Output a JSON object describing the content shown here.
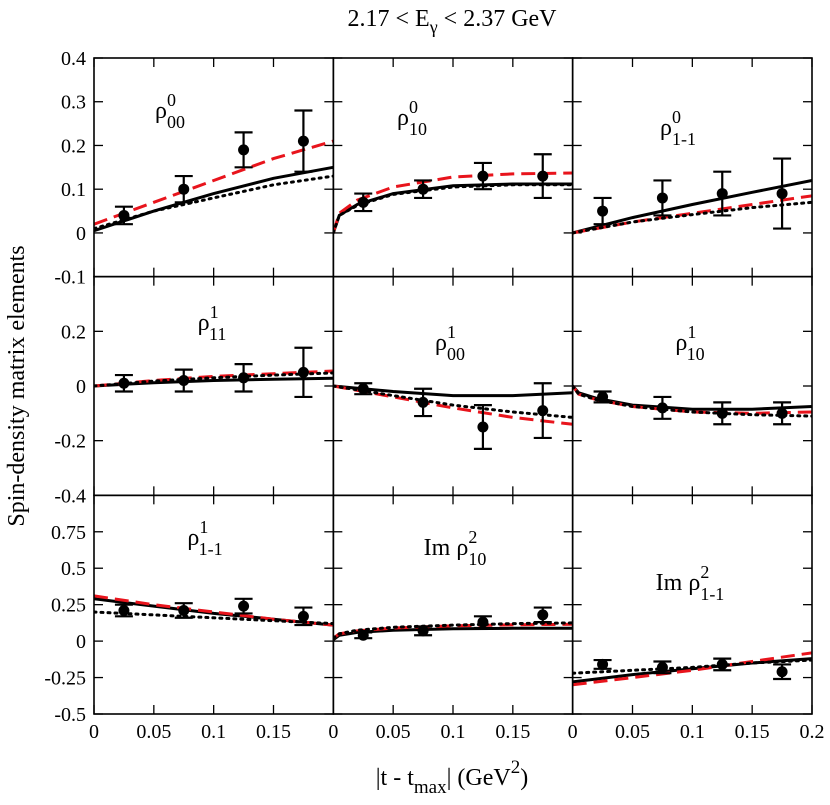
{
  "figure": {
    "title": [
      "2.17 < E",
      "γ",
      " < 2.37 GeV"
    ],
    "x_label": [
      "|t - t",
      "max",
      "| (GeV",
      "2",
      ")"
    ],
    "y_label": "Spin-density matrix elements"
  },
  "chart_data": [
    {
      "type": "line",
      "label": {
        "main": "ρ",
        "sup": "0",
        "sub": "00"
      },
      "xlim": [
        0,
        0.2
      ],
      "ylim": [
        -0.1,
        0.4
      ],
      "xticks": [
        0,
        0.05,
        0.1,
        0.15
      ],
      "yticks": [
        -0.1,
        0,
        0.1,
        0.2,
        0.3,
        0.4
      ],
      "points": {
        "color": "#000000",
        "x": [
          0.025,
          0.075,
          0.125,
          0.175
        ],
        "values": [
          0.04,
          0.1,
          0.19,
          0.21
        ],
        "errors": [
          0.02,
          0.03,
          0.04,
          0.07
        ]
      },
      "series": [
        {
          "style": "solid",
          "color": "#000000",
          "x": [
            0,
            0.05,
            0.1,
            0.15,
            0.2
          ],
          "values": [
            0.005,
            0.05,
            0.09,
            0.125,
            0.15
          ]
        },
        {
          "style": "dashed",
          "color": "#e8141c",
          "x": [
            0,
            0.05,
            0.1,
            0.15,
            0.2
          ],
          "values": [
            0.02,
            0.07,
            0.12,
            0.17,
            0.21
          ]
        },
        {
          "style": "dotted",
          "color": "#000000",
          "x": [
            0,
            0.05,
            0.1,
            0.15,
            0.2
          ],
          "values": [
            0.01,
            0.05,
            0.08,
            0.11,
            0.13
          ]
        }
      ]
    },
    {
      "type": "line",
      "label": {
        "main": "ρ",
        "sup": "0",
        "sub": "10"
      },
      "xlim": [
        0,
        0.2
      ],
      "ylim": [
        -0.1,
        0.4
      ],
      "xticks": [
        0,
        0.05,
        0.1,
        0.15
      ],
      "yticks": [
        -0.1,
        0,
        0.1,
        0.2,
        0.3,
        0.4
      ],
      "points": {
        "color": "#000000",
        "x": [
          0.025,
          0.075,
          0.125,
          0.175
        ],
        "values": [
          0.07,
          0.1,
          0.13,
          0.13
        ],
        "errors": [
          0.02,
          0.02,
          0.03,
          0.05
        ]
      },
      "series": [
        {
          "style": "solid",
          "color": "#000000",
          "x": [
            0,
            0.005,
            0.02,
            0.05,
            0.1,
            0.15,
            0.2
          ],
          "values": [
            0,
            0.04,
            0.065,
            0.09,
            0.108,
            0.112,
            0.112
          ]
        },
        {
          "style": "dashed",
          "color": "#e8141c",
          "x": [
            0,
            0.005,
            0.02,
            0.05,
            0.1,
            0.15,
            0.2
          ],
          "values": [
            0,
            0.045,
            0.075,
            0.105,
            0.128,
            0.135,
            0.137
          ]
        },
        {
          "style": "dotted",
          "color": "#000000",
          "x": [
            0,
            0.005,
            0.02,
            0.05,
            0.1,
            0.15,
            0.2
          ],
          "values": [
            0,
            0.04,
            0.063,
            0.088,
            0.105,
            0.11,
            0.11
          ]
        }
      ]
    },
    {
      "type": "line",
      "label": {
        "main": "ρ",
        "sup": "0",
        "sub": "1-1"
      },
      "xlim": [
        0,
        0.2
      ],
      "ylim": [
        -0.1,
        0.4
      ],
      "xticks": [
        0,
        0.05,
        0.1,
        0.15,
        0.2
      ],
      "yticks": [
        -0.1,
        0,
        0.1,
        0.2,
        0.3,
        0.4
      ],
      "points": {
        "color": "#000000",
        "x": [
          0.025,
          0.075,
          0.125,
          0.175
        ],
        "values": [
          0.05,
          0.08,
          0.09,
          0.09
        ],
        "errors": [
          0.03,
          0.04,
          0.05,
          0.08
        ]
      },
      "series": [
        {
          "style": "solid",
          "color": "#000000",
          "x": [
            0,
            0.05,
            0.1,
            0.15,
            0.2
          ],
          "values": [
            0,
            0.035,
            0.065,
            0.093,
            0.12
          ]
        },
        {
          "style": "dashed",
          "color": "#e8141c",
          "x": [
            0,
            0.05,
            0.1,
            0.15,
            0.2
          ],
          "values": [
            0,
            0.025,
            0.045,
            0.065,
            0.085
          ]
        },
        {
          "style": "dotted",
          "color": "#000000",
          "x": [
            0,
            0.05,
            0.1,
            0.15,
            0.2
          ],
          "values": [
            0,
            0.025,
            0.042,
            0.058,
            0.07
          ]
        }
      ]
    },
    {
      "type": "line",
      "label": {
        "main": "ρ",
        "sup": "1",
        "sub": "11"
      },
      "xlim": [
        0,
        0.2
      ],
      "ylim": [
        -0.4,
        0.4
      ],
      "xticks": [
        0,
        0.05,
        0.1,
        0.15
      ],
      "yticks": [
        -0.4,
        -0.2,
        0,
        0.2
      ],
      "points": {
        "color": "#000000",
        "x": [
          0.025,
          0.075,
          0.125,
          0.175
        ],
        "values": [
          0.01,
          0.02,
          0.03,
          0.05
        ],
        "errors": [
          0.03,
          0.04,
          0.05,
          0.09
        ]
      },
      "series": [
        {
          "style": "solid",
          "color": "#000000",
          "x": [
            0,
            0.05,
            0.1,
            0.15,
            0.2
          ],
          "values": [
            0,
            0.012,
            0.02,
            0.025,
            0.028
          ]
        },
        {
          "style": "dashed",
          "color": "#e8141c",
          "x": [
            0,
            0.05,
            0.1,
            0.15,
            0.2
          ],
          "values": [
            0,
            0.02,
            0.035,
            0.045,
            0.055
          ]
        },
        {
          "style": "dotted",
          "color": "#000000",
          "x": [
            0,
            0.05,
            0.1,
            0.15,
            0.2
          ],
          "values": [
            0,
            0.018,
            0.03,
            0.04,
            0.048
          ]
        }
      ]
    },
    {
      "type": "line",
      "label": {
        "main": "ρ",
        "sup": "1",
        "sub": "00"
      },
      "xlim": [
        0,
        0.2
      ],
      "ylim": [
        -0.4,
        0.4
      ],
      "xticks": [
        0,
        0.05,
        0.1,
        0.15
      ],
      "yticks": [
        -0.4,
        -0.2,
        0,
        0.2
      ],
      "points": {
        "color": "#000000",
        "x": [
          0.025,
          0.075,
          0.125,
          0.175
        ],
        "values": [
          -0.01,
          -0.06,
          -0.15,
          -0.09
        ],
        "errors": [
          0.02,
          0.05,
          0.08,
          0.1
        ]
      },
      "series": [
        {
          "style": "solid",
          "color": "#000000",
          "x": [
            0,
            0.05,
            0.1,
            0.15,
            0.2
          ],
          "values": [
            0,
            -0.02,
            -0.035,
            -0.035,
            -0.025
          ]
        },
        {
          "style": "dashed",
          "color": "#e8141c",
          "x": [
            0,
            0.05,
            0.1,
            0.15,
            0.2
          ],
          "values": [
            0,
            -0.04,
            -0.08,
            -0.115,
            -0.14
          ]
        },
        {
          "style": "dotted",
          "color": "#000000",
          "x": [
            0,
            0.05,
            0.1,
            0.15,
            0.2
          ],
          "values": [
            0,
            -0.035,
            -0.07,
            -0.095,
            -0.115
          ]
        }
      ]
    },
    {
      "type": "line",
      "label": {
        "main": "ρ",
        "sup": "1",
        "sub": "10"
      },
      "xlim": [
        0,
        0.2
      ],
      "ylim": [
        -0.4,
        0.4
      ],
      "xticks": [
        0,
        0.05,
        0.1,
        0.15,
        0.2
      ],
      "yticks": [
        -0.4,
        -0.2,
        0,
        0.2
      ],
      "points": {
        "color": "#000000",
        "x": [
          0.025,
          0.075,
          0.125,
          0.175
        ],
        "values": [
          -0.04,
          -0.08,
          -0.1,
          -0.1
        ],
        "errors": [
          0.02,
          0.04,
          0.04,
          0.04
        ]
      },
      "series": [
        {
          "style": "solid",
          "color": "#000000",
          "x": [
            0,
            0.005,
            0.02,
            0.05,
            0.1,
            0.15,
            0.2
          ],
          "values": [
            0,
            -0.025,
            -0.045,
            -0.07,
            -0.085,
            -0.085,
            -0.075
          ]
        },
        {
          "style": "dashed",
          "color": "#e8141c",
          "x": [
            0,
            0.005,
            0.02,
            0.05,
            0.1,
            0.15,
            0.2
          ],
          "values": [
            0,
            -0.03,
            -0.05,
            -0.075,
            -0.095,
            -0.1,
            -0.095
          ]
        },
        {
          "style": "dotted",
          "color": "#000000",
          "x": [
            0,
            0.005,
            0.02,
            0.05,
            0.1,
            0.15,
            0.2
          ],
          "values": [
            0,
            -0.03,
            -0.05,
            -0.075,
            -0.095,
            -0.105,
            -0.11
          ]
        }
      ]
    },
    {
      "type": "line",
      "label": {
        "main": "ρ",
        "sup": "1",
        "sub": "1-1"
      },
      "xlim": [
        0,
        0.2
      ],
      "ylim": [
        -0.5,
        1.0
      ],
      "xticks": [
        0,
        0.05,
        0.1,
        0.15
      ],
      "yticks": [
        -0.5,
        -0.25,
        0,
        0.25,
        0.5,
        0.75
      ],
      "points": {
        "color": "#000000",
        "x": [
          0.025,
          0.075,
          0.125,
          0.175
        ],
        "values": [
          0.21,
          0.21,
          0.24,
          0.17
        ],
        "errors": [
          0.04,
          0.05,
          0.05,
          0.06
        ]
      },
      "series": [
        {
          "style": "solid",
          "color": "#000000",
          "x": [
            0,
            0.05,
            0.1,
            0.15,
            0.2
          ],
          "values": [
            0.29,
            0.24,
            0.19,
            0.15,
            0.11
          ]
        },
        {
          "style": "dashed",
          "color": "#e8141c",
          "x": [
            0,
            0.05,
            0.1,
            0.15,
            0.2
          ],
          "values": [
            0.31,
            0.25,
            0.2,
            0.15,
            0.11
          ]
        },
        {
          "style": "dotted",
          "color": "#000000",
          "x": [
            0,
            0.05,
            0.1,
            0.15,
            0.2
          ],
          "values": [
            0.2,
            0.18,
            0.16,
            0.14,
            0.12
          ]
        }
      ]
    },
    {
      "type": "line",
      "label": {
        "main": "Im ρ",
        "sup": "2",
        "sub": "10"
      },
      "xlim": [
        0,
        0.2
      ],
      "ylim": [
        -0.5,
        1.0
      ],
      "xticks": [
        0,
        0.05,
        0.1,
        0.15
      ],
      "yticks": [
        -0.5,
        -0.25,
        0,
        0.25,
        0.5,
        0.75
      ],
      "points": {
        "color": "#000000",
        "x": [
          0.025,
          0.075,
          0.125,
          0.175
        ],
        "values": [
          0.04,
          0.07,
          0.13,
          0.18
        ],
        "errors": [
          0.02,
          0.03,
          0.04,
          0.05
        ]
      },
      "series": [
        {
          "style": "solid",
          "color": "#000000",
          "x": [
            0,
            0.005,
            0.02,
            0.05,
            0.1,
            0.15,
            0.2
          ],
          "values": [
            0.01,
            0.04,
            0.06,
            0.075,
            0.085,
            0.088,
            0.088
          ]
        },
        {
          "style": "dashed",
          "color": "#e8141c",
          "x": [
            0,
            0.005,
            0.02,
            0.05,
            0.1,
            0.15,
            0.2
          ],
          "values": [
            0.02,
            0.05,
            0.07,
            0.09,
            0.105,
            0.112,
            0.115
          ]
        },
        {
          "style": "dotted",
          "color": "#000000",
          "x": [
            0,
            0.005,
            0.02,
            0.05,
            0.1,
            0.15,
            0.2
          ],
          "values": [
            0.02,
            0.05,
            0.075,
            0.095,
            0.11,
            0.12,
            0.125
          ]
        }
      ]
    },
    {
      "type": "line",
      "label": {
        "main": "Im ρ",
        "sup": "2",
        "sub": "1-1"
      },
      "xlim": [
        0,
        0.2
      ],
      "ylim": [
        -0.5,
        1.0
      ],
      "xticks": [
        0,
        0.05,
        0.1,
        0.15,
        0.2
      ],
      "yticks": [
        -0.5,
        -0.25,
        0,
        0.25,
        0.5,
        0.75
      ],
      "points": {
        "color": "#000000",
        "x": [
          0.025,
          0.075,
          0.125,
          0.175
        ],
        "values": [
          -0.16,
          -0.18,
          -0.16,
          -0.21
        ],
        "errors": [
          0.03,
          0.04,
          0.04,
          0.05
        ]
      },
      "series": [
        {
          "style": "solid",
          "color": "#000000",
          "x": [
            0,
            0.05,
            0.1,
            0.15,
            0.2
          ],
          "values": [
            -0.28,
            -0.23,
            -0.19,
            -0.15,
            -0.12
          ]
        },
        {
          "style": "dashed",
          "color": "#e8141c",
          "x": [
            0,
            0.05,
            0.1,
            0.15,
            0.2
          ],
          "values": [
            -0.3,
            -0.25,
            -0.2,
            -0.14,
            -0.08
          ]
        },
        {
          "style": "dotted",
          "color": "#000000",
          "x": [
            0,
            0.05,
            0.1,
            0.15,
            0.2
          ],
          "values": [
            -0.22,
            -0.2,
            -0.18,
            -0.15,
            -0.13
          ]
        }
      ]
    }
  ]
}
